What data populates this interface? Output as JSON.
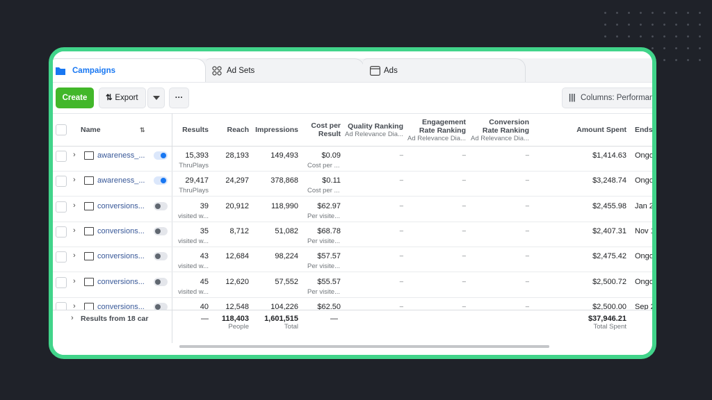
{
  "tabs": [
    "Campaigns",
    "Ad Sets",
    "Ads"
  ],
  "toolbar": {
    "create": "Create",
    "export": "Export",
    "more": "···",
    "columns": "Columns: Performanc"
  },
  "table": {
    "headers": {
      "name": "Name",
      "results": "Results",
      "reach": "Reach",
      "impressions": "Impressions",
      "cost": "Cost per Result",
      "quality": "Quality Ranking",
      "quality_sub": "Ad Relevance Dia...",
      "engagement": "Engagement Rate Ranking",
      "engagement_sub": "Ad Relevance Dia...",
      "conversion": "Conversion Rate Ranking",
      "conversion_sub": "Ad Relevance Dia...",
      "amount": "Amount Spent",
      "ends": "Ends"
    },
    "rows": [
      {
        "name": "awareness_...",
        "results": "15,393",
        "results_label": "ThruPlays",
        "reach": "28,193",
        "impressions": "149,493",
        "cost": "$0.09",
        "cost_label": "Cost per ...",
        "quality": "–",
        "engagement": "–",
        "conversion": "–",
        "amount": "$1,414.63",
        "ends": "Ongo",
        "on": true
      },
      {
        "name": "awareness_...",
        "results": "29,417",
        "results_label": "ThruPlays",
        "reach": "24,297",
        "impressions": "378,868",
        "cost": "$0.11",
        "cost_label": "Cost per ...",
        "quality": "–",
        "engagement": "–",
        "conversion": "–",
        "amount": "$3,248.74",
        "ends": "Ongo",
        "on": true
      },
      {
        "name": "conversions...",
        "results": "39",
        "results_label": "visited w...",
        "reach": "20,912",
        "impressions": "118,990",
        "cost": "$62.97",
        "cost_label": "Per visite...",
        "quality": "–",
        "engagement": "–",
        "conversion": "–",
        "amount": "$2,455.98",
        "ends": "Jan 2",
        "on": false
      },
      {
        "name": "conversions...",
        "results": "35",
        "results_label": "visited w...",
        "reach": "8,712",
        "impressions": "51,082",
        "cost": "$68.78",
        "cost_label": "Per visite...",
        "quality": "–",
        "engagement": "–",
        "conversion": "–",
        "amount": "$2,407.31",
        "ends": "Nov 1",
        "on": false
      },
      {
        "name": "conversions...",
        "results": "43",
        "results_label": "visited w...",
        "reach": "12,684",
        "impressions": "98,224",
        "cost": "$57.57",
        "cost_label": "Per visite...",
        "quality": "–",
        "engagement": "–",
        "conversion": "–",
        "amount": "$2,475.42",
        "ends": "Ongo",
        "on": false
      },
      {
        "name": "conversions...",
        "results": "45",
        "results_label": "visited w...",
        "reach": "12,620",
        "impressions": "57,552",
        "cost": "$55.57",
        "cost_label": "Per visite...",
        "quality": "–",
        "engagement": "–",
        "conversion": "–",
        "amount": "$2,500.72",
        "ends": "Ongo",
        "on": false
      },
      {
        "name": "conversions...",
        "results": "40",
        "reach": "12,548",
        "impressions": "104,226",
        "cost": "$62.50",
        "quality": "–",
        "engagement": "–",
        "conversion": "–",
        "amount": "$2,500.00",
        "ends": "Sep 2",
        "on": false
      }
    ],
    "footer": {
      "name": "Results from 18 car",
      "results": "—",
      "reach": "118,403",
      "reach_label": "People",
      "impressions": "1,601,515",
      "impressions_label": "Total",
      "cost": "—",
      "amount": "$37,946.21",
      "amount_label": "Total Spent"
    }
  }
}
